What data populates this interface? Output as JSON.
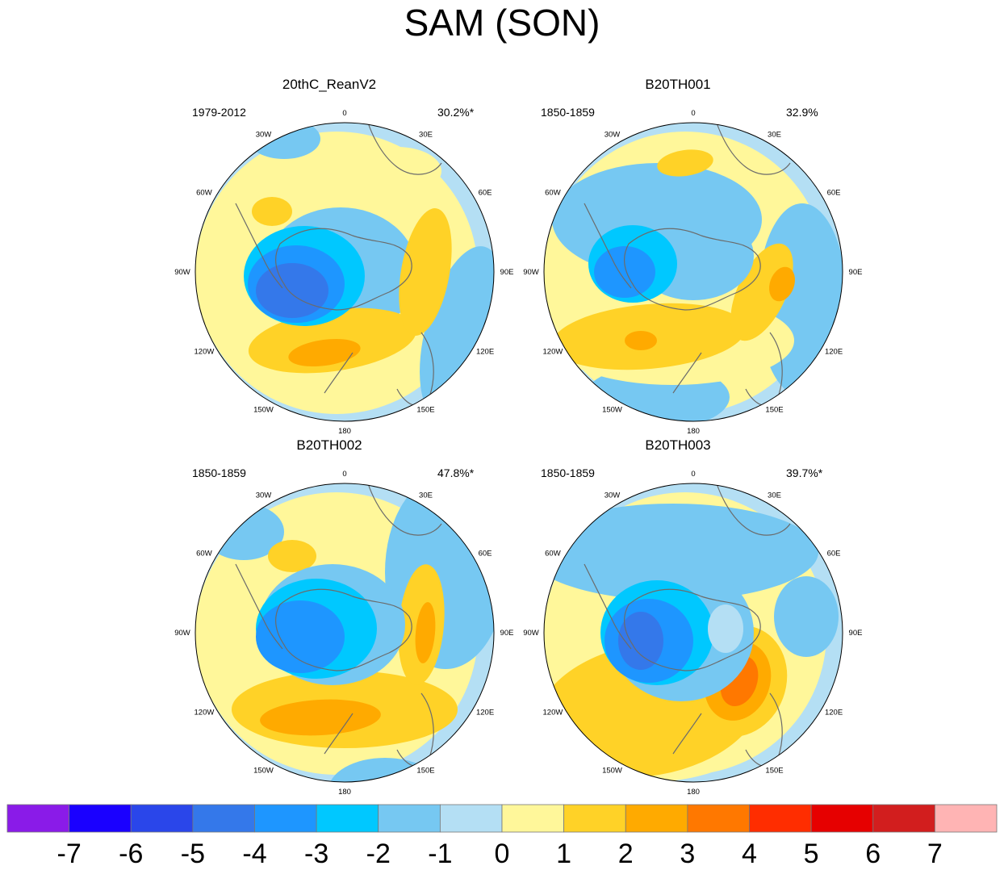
{
  "title": "SAM (SON)",
  "panels": [
    {
      "title": "20thC_ReanV2",
      "years": "1979-2012",
      "variance": "30.2%*"
    },
    {
      "title": "B20TH001",
      "years": "1850-1859",
      "variance": "32.9%"
    },
    {
      "title": "B20TH002",
      "years": "1850-1859",
      "variance": "47.8%*"
    },
    {
      "title": "B20TH003",
      "years": "1850-1859",
      "variance": "39.7%*"
    }
  ],
  "longitude_labels": {
    "0": "0",
    "30E": "30E",
    "60E": "60E",
    "90E": "90E",
    "120E": "120E",
    "150E": "150E",
    "180": "180",
    "150W": "150W",
    "120W": "120W",
    "90W": "90W",
    "60W": "60W",
    "30W": "30W"
  },
  "colorbar": {
    "labels": [
      "-7",
      "-6",
      "-5",
      "-4",
      "-3",
      "-2",
      "-1",
      "0",
      "1",
      "2",
      "3",
      "4",
      "5",
      "6",
      "7"
    ],
    "colors": [
      "#8a1be8",
      "#1a00ff",
      "#2a46ea",
      "#3478ea",
      "#1e96ff",
      "#00c8ff",
      "#76c8f2",
      "#b4dff4",
      "#fff79a",
      "#ffd227",
      "#ffaa00",
      "#ff7800",
      "#ff2d00",
      "#e60000",
      "#d21e1e",
      "#ffb4b4"
    ]
  }
}
